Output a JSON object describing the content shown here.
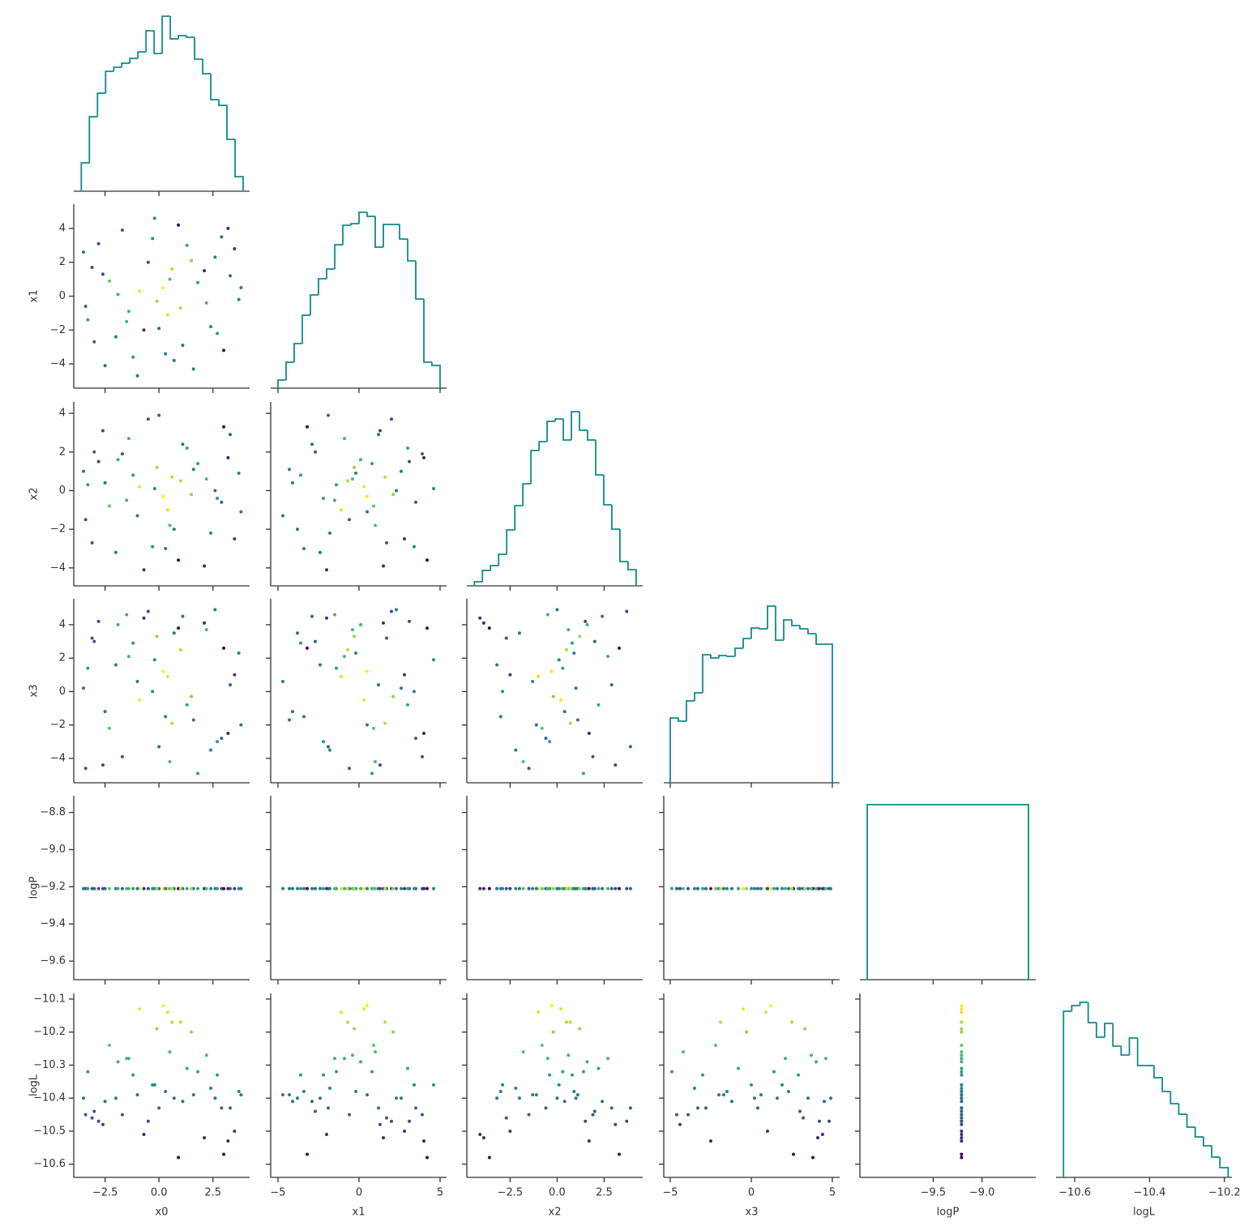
{
  "chart_data": {
    "type": "pairplot",
    "hue": "logL",
    "hist_color": "#11898a",
    "colormap": [
      "#440154",
      "#3b528b",
      "#21918c",
      "#5ec962",
      "#fde725"
    ],
    "axes": [
      {
        "label": "x0",
        "xlim": [
          -3.95,
          4.2
        ],
        "xticks": [
          {
            "value": -2.5,
            "label": "−2.5"
          },
          {
            "value": 0,
            "label": "0.0"
          },
          2.5
        ],
        "values": [
          0.2,
          -2.8,
          2.4,
          -1.2,
          3.3,
          -3.4,
          0.9,
          1.6,
          -0.5,
          -2.0,
          2.9,
          -0.9,
          3.7,
          -3.1,
          1.1,
          -1.7,
          0.4,
          2.1,
          -2.5,
          3.0,
          -0.2,
          1.8,
          -3.5,
          0.7,
          -1.4,
          2.6,
          -2.3,
          0.0,
          3.5,
          -0.7,
          1.3,
          -3.0,
          0.5,
          2.2,
          -1.0,
          3.8,
          -2.6,
          1.0,
          -0.3,
          2.7,
          -1.9,
          0.3,
          -3.3,
          1.5,
          -0.1,
          0.6,
          -1.5,
          3.2
        ],
        "hist": {
          "bins": [
            -3.6,
            -3.225,
            -2.85,
            -2.475,
            -2.1,
            -1.725,
            -1.35,
            -0.975,
            -0.6,
            -0.225,
            0.15,
            0.525,
            0.9,
            1.275,
            1.65,
            2.025,
            2.4,
            2.775,
            3.15,
            3.525,
            3.9
          ],
          "counts": [
            35,
            92,
            121,
            148,
            153,
            158,
            164,
            172,
            198,
            170,
            216,
            188,
            192,
            190,
            163,
            145,
            113,
            106,
            64,
            18
          ],
          "ylim": [
            0,
            227
          ]
        }
      },
      {
        "label": "x1",
        "xlim": [
          -5.45,
          5.4
        ],
        "xticks": [
          {
            "value": -5,
            "label": "−5"
          },
          0,
          5
        ],
        "ylim": [
          -5.43,
          5.43
        ],
        "yticks": [
          {
            "value": -4,
            "label": "−4"
          },
          {
            "value": -2,
            "label": "−2"
          },
          0,
          2,
          4
        ],
        "values": [
          0.5,
          3.1,
          -1.8,
          -3.6,
          1.2,
          -0.6,
          4.2,
          -4.3,
          2.0,
          -2.4,
          3.5,
          0.3,
          -0.2,
          1.7,
          -2.9,
          3.9,
          -1.1,
          1.5,
          -4.1,
          -3.2,
          4.6,
          0.8,
          2.6,
          -3.8,
          -0.9,
          2.3,
          0.9,
          -1.9,
          2.8,
          -2.0,
          3.0,
          -2.7,
          1.0,
          -0.4,
          -4.7,
          0.5,
          1.3,
          -0.7,
          3.4,
          -2.2,
          0.1,
          -3.4,
          -1.4,
          2.1,
          -0.3,
          1.6,
          -1.5,
          4.0
        ],
        "hist": {
          "bins": [
            -5,
            -4.5,
            -4,
            -3.5,
            -3,
            -2.5,
            -2,
            -1.5,
            -1,
            -0.5,
            0,
            0.5,
            1,
            1.5,
            2,
            2.5,
            3,
            3.5,
            4,
            4.5,
            5
          ],
          "counts": [
            10,
            32,
            55,
            90,
            115,
            135,
            147,
            177,
            201,
            203,
            217,
            212,
            174,
            202,
            202,
            184,
            157,
            110,
            32,
            28
          ],
          "ylim": [
            0,
            227
          ]
        }
      },
      {
        "label": "x2",
        "xlim": [
          -4.8,
          4.55
        ],
        "xticks": [
          {
            "value": -2.5,
            "label": "−2.5"
          },
          {
            "value": 0,
            "label": "0.0"
          },
          2.5
        ],
        "ylim": [
          -4.93,
          4.59
        ],
        "yticks": [
          {
            "value": -4,
            "label": "−4"
          },
          {
            "value": -2,
            "label": "−2"
          },
          0,
          2,
          4
        ],
        "values": [
          -0.3,
          1.5,
          -2.2,
          0.8,
          2.9,
          -1.5,
          -3.6,
          1.1,
          3.7,
          -3.2,
          -0.6,
          0.2,
          0.9,
          -2.7,
          2.4,
          1.9,
          -1.0,
          -3.9,
          0.4,
          3.3,
          0.1,
          1.4,
          1.0,
          -2.0,
          2.7,
          0.0,
          -0.8,
          3.9,
          -2.5,
          -4.1,
          2.2,
          2.0,
          -1.8,
          0.6,
          -1.3,
          -1.1,
          3.1,
          0.5,
          -2.9,
          -0.4,
          1.6,
          -3.0,
          0.3,
          -0.2,
          1.2,
          0.7,
          -0.5,
          1.7
        ],
        "hist": {
          "bins": [
            -4.4,
            -3.97,
            -3.54,
            -3.11,
            -2.68,
            -2.25,
            -1.82,
            -1.39,
            -0.96,
            -0.53,
            -0.1,
            0.33,
            0.76,
            1.19,
            1.62,
            2.05,
            2.48,
            2.91,
            3.34,
            3.77,
            4.2
          ],
          "counts": [
            5,
            19,
            25,
            39,
            69,
            99,
            126,
            167,
            178,
            203,
            206,
            180,
            215,
            192,
            180,
            137,
            100,
            70,
            30,
            20
          ],
          "ylim": [
            0,
            227
          ]
        }
      },
      {
        "label": "x3",
        "xlim": [
          -5.4,
          5.45
        ],
        "xticks": [
          {
            "value": -5,
            "label": "−5"
          },
          0,
          5
        ],
        "ylim": [
          -5.46,
          5.55
        ],
        "yticks": [
          {
            "value": -4,
            "label": "−4"
          },
          {
            "value": -2,
            "label": "−2"
          },
          0,
          2,
          4
        ],
        "values": [
          1.2,
          4.2,
          -3.5,
          2.9,
          0.4,
          -4.6,
          3.8,
          -1.7,
          4.8,
          1.6,
          -2.8,
          -0.5,
          2.3,
          3.2,
          4.5,
          -3.9,
          0.9,
          4.1,
          -1.2,
          2.6,
          1.9,
          -4.9,
          0.2,
          3.5,
          2.1,
          4.9,
          -2.2,
          -3.3,
          1.0,
          4.4,
          -0.8,
          3.0,
          -4.2,
          3.7,
          0.6,
          -2.0,
          -4.4,
          2.5,
          0.0,
          -3.0,
          4.0,
          -1.5,
          1.4,
          -0.3,
          3.3,
          -1.9,
          4.6,
          -2.5
        ],
        "hist": {
          "bins": [
            -5,
            -4.5,
            -4,
            -3.5,
            -3,
            -2.5,
            -2,
            -1.5,
            -1,
            -0.5,
            0,
            0.5,
            1,
            1.5,
            2,
            2.5,
            3,
            3.5,
            4,
            4.5,
            5
          ],
          "counts": [
            80,
            76,
            101,
            111,
            158,
            154,
            157,
            156,
            166,
            178,
            191,
            190,
            218,
            176,
            201,
            194,
            190,
            184,
            171,
            171
          ],
          "ylim": [
            0,
            227
          ]
        }
      },
      {
        "label": "logP",
        "xlim": [
          -10.25,
          -8.45
        ],
        "xticks": [
          {
            "value": -9.5,
            "label": "−9.5"
          },
          {
            "value": -9.0,
            "label": "−9.0"
          }
        ],
        "ylim": [
          -9.7,
          -8.71
        ],
        "yticks": [
          {
            "value": -9.6,
            "label": "−9.6"
          },
          {
            "value": -9.4,
            "label": "−9.4"
          },
          {
            "value": -9.2,
            "label": "−9.2"
          },
          {
            "value": -9.0,
            "label": "−9.0"
          },
          {
            "value": -8.8,
            "label": "−8.8"
          }
        ],
        "values": [
          -9.21,
          -9.21,
          -9.21,
          -9.21,
          -9.21,
          -9.21,
          -9.21,
          -9.21,
          -9.21,
          -9.21,
          -9.21,
          -9.21,
          -9.21,
          -9.21,
          -9.21,
          -9.21,
          -9.21,
          -9.21,
          -9.21,
          -9.21,
          -9.21,
          -9.21,
          -9.21,
          -9.21,
          -9.21,
          -9.21,
          -9.21,
          -9.21,
          -9.21,
          -9.21,
          -9.21,
          -9.21,
          -9.21,
          -9.21,
          -9.21,
          -9.21,
          -9.21,
          -9.21,
          -9.21,
          -9.21,
          -9.21,
          -9.21,
          -9.21,
          -9.21,
          -9.21,
          -9.21,
          -9.21,
          -9.21
        ],
        "hist": {
          "bins": [
            -10.175,
            -8.525
          ],
          "counts": [
            216
          ],
          "ylim": [
            0,
            227
          ]
        }
      },
      {
        "label": "logL",
        "xlim": [
          -10.65,
          -10.18
        ],
        "xticks": [
          {
            "value": -10.6,
            "label": "−10.6"
          },
          {
            "value": -10.4,
            "label": "−10.4"
          },
          {
            "value": -10.2,
            "label": "−10.2"
          }
        ],
        "ylim": [
          -10.64,
          -10.083
        ],
        "yticks": [
          {
            "value": -10.6,
            "label": "−10.6"
          },
          {
            "value": -10.5,
            "label": "−10.5"
          },
          {
            "value": -10.4,
            "label": "−10.4"
          },
          {
            "value": -10.3,
            "label": "−10.3"
          },
          {
            "value": -10.2,
            "label": "−10.2"
          },
          {
            "value": -10.1,
            "label": "−10.1"
          }
        ],
        "values": [
          -10.12,
          -10.47,
          -10.37,
          -10.33,
          -10.43,
          -10.45,
          -10.58,
          -10.39,
          -10.47,
          -10.4,
          -10.43,
          -10.13,
          -10.38,
          -10.46,
          -10.41,
          -10.45,
          -10.14,
          -10.52,
          -10.41,
          -10.57,
          -10.36,
          -10.32,
          -10.4,
          -10.4,
          -10.28,
          -10.4,
          -10.24,
          -10.43,
          -10.5,
          -10.51,
          -10.31,
          -10.44,
          -10.26,
          -10.27,
          -10.39,
          -10.39,
          -10.48,
          -10.17,
          -10.36,
          -10.33,
          -10.29,
          -10.38,
          -10.32,
          -10.2,
          -10.19,
          -10.17,
          -10.28,
          -10.53
        ],
        "hist": {
          "bins": [
            -10.63,
            -10.608,
            -10.586,
            -10.564,
            -10.542,
            -10.52,
            -10.498,
            -10.476,
            -10.454,
            -10.432,
            -10.41,
            -10.388,
            -10.366,
            -10.344,
            -10.322,
            -10.3,
            -10.278,
            -10.256,
            -10.234,
            -10.212,
            -10.19
          ],
          "counts": [
            205,
            212,
            216,
            191,
            173,
            190,
            162,
            151,
            172,
            138,
            138,
            123,
            106,
            91,
            78,
            62,
            50,
            39,
            25,
            12
          ],
          "ylim": [
            0,
            227
          ]
        }
      }
    ]
  }
}
